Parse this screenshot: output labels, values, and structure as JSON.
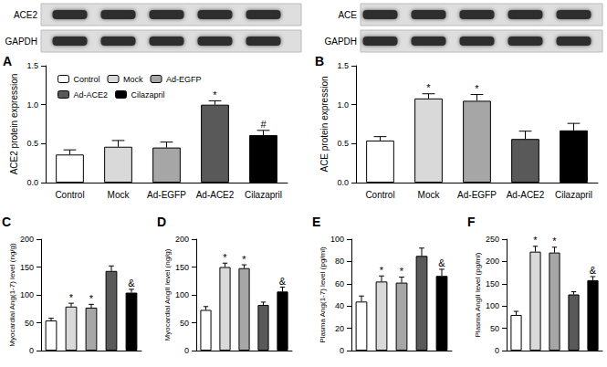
{
  "chart_data": [
    {
      "title": "A",
      "type": "bar",
      "blot_labels": [
        "ACE2",
        "GAPDH"
      ],
      "categories": [
        "Control",
        "Mock",
        "Ad-EGFP",
        "Ad-ACE2",
        "Cilazapril"
      ],
      "colors": [
        "#ffffff",
        "#d9d9d9",
        "#a6a6a6",
        "#595959",
        "#000000"
      ],
      "values": [
        0.36,
        0.46,
        0.45,
        1.0,
        0.61
      ],
      "errors": [
        0.06,
        0.08,
        0.07,
        0.05,
        0.06
      ],
      "annotations": [
        null,
        null,
        null,
        "*",
        "#"
      ],
      "y_label": "ACE2 protein expression",
      "ylim": [
        0,
        1.5
      ],
      "yticks": [
        {
          "value": 0,
          "label": "0.0"
        },
        {
          "value": 0.5,
          "label": "0.5"
        },
        {
          "value": 1,
          "label": "1.0"
        },
        {
          "value": 1.5,
          "label": "1.5"
        }
      ],
      "grid": false,
      "legend": "upper left"
    },
    {
      "title": "B",
      "type": "bar",
      "blot_labels": [
        "ACE",
        "GAPDH"
      ],
      "categories": [
        "Control",
        "Mock",
        "Ad-EGFP",
        "Ad-ACE2",
        "Cilazapril"
      ],
      "colors": [
        "#ffffff",
        "#d9d9d9",
        "#a6a6a6",
        "#595959",
        "#000000"
      ],
      "values": [
        0.54,
        1.08,
        1.05,
        0.56,
        0.67
      ],
      "errors": [
        0.05,
        0.06,
        0.08,
        0.1,
        0.09
      ],
      "annotations": [
        null,
        "*",
        "*",
        null,
        null
      ],
      "y_label": "ACE protein expression",
      "ylim": [
        0,
        1.5
      ],
      "yticks": [
        {
          "value": 0,
          "label": "0.0"
        },
        {
          "value": 0.5,
          "label": "0.5"
        },
        {
          "value": 1,
          "label": "1.0"
        },
        {
          "value": 1.5,
          "label": "1.5"
        }
      ],
      "grid": false
    },
    {
      "title": "C",
      "type": "bar",
      "categories": [
        null,
        null,
        null,
        null,
        null
      ],
      "colors": [
        "#ffffff",
        "#d9d9d9",
        "#a6a6a6",
        "#595959",
        "#000000"
      ],
      "values": [
        54,
        79,
        77,
        143,
        104
      ],
      "errors": [
        4,
        6,
        6,
        9,
        6
      ],
      "annotations": [
        null,
        "*",
        "*",
        null,
        "&"
      ],
      "y_label": "Myocardial Ang(1-7) level (ng/g)",
      "ylim": [
        0,
        200
      ],
      "yticks": [
        0,
        50,
        100,
        150,
        200
      ],
      "grid": false,
      "tick_labels": "y"
    },
    {
      "title": "D",
      "type": "bar",
      "categories": [
        null,
        null,
        null,
        null,
        null
      ],
      "colors": [
        "#ffffff",
        "#d9d9d9",
        "#a6a6a6",
        "#595959",
        "#000000"
      ],
      "values": [
        73,
        150,
        148,
        82,
        106
      ],
      "errors": [
        6,
        7,
        6,
        5,
        8
      ],
      "annotations": [
        null,
        "*",
        "*",
        null,
        "&"
      ],
      "y_label": "Myocardial AngII level (ng/g)",
      "ylim": [
        0,
        200
      ],
      "yticks": [
        0,
        50,
        100,
        150,
        200
      ],
      "grid": false,
      "tick_labels": "y"
    },
    {
      "title": "E",
      "type": "bar",
      "categories": [
        null,
        null,
        null,
        null,
        null
      ],
      "colors": [
        "#ffffff",
        "#d9d9d9",
        "#a6a6a6",
        "#595959",
        "#000000"
      ],
      "values": [
        44,
        62,
        61,
        85,
        67
      ],
      "errors": [
        5,
        5,
        5,
        7,
        6
      ],
      "annotations": [
        null,
        "*",
        "*",
        null,
        "&"
      ],
      "y_label": "Plasma Ang(1-7) level (pg/ml)",
      "ylim": [
        0,
        100
      ],
      "yticks": [
        0,
        20,
        40,
        60,
        80,
        100
      ],
      "grid": false,
      "tick_labels": "y"
    },
    {
      "title": "F",
      "type": "bar",
      "categories": [
        null,
        null,
        null,
        null,
        null
      ],
      "colors": [
        "#ffffff",
        "#d9d9d9",
        "#a6a6a6",
        "#595959",
        "#000000"
      ],
      "values": [
        80,
        222,
        220,
        126,
        158
      ],
      "errors": [
        8,
        12,
        12,
        6,
        8
      ],
      "annotations": [
        null,
        "*",
        "*",
        null,
        "&"
      ],
      "y_label": "Plasma AngII level (pg/ml)",
      "ylim": [
        0,
        250
      ],
      "yticks": [
        0,
        50,
        100,
        150,
        200,
        250
      ],
      "grid": false,
      "tick_labels": "y"
    }
  ]
}
